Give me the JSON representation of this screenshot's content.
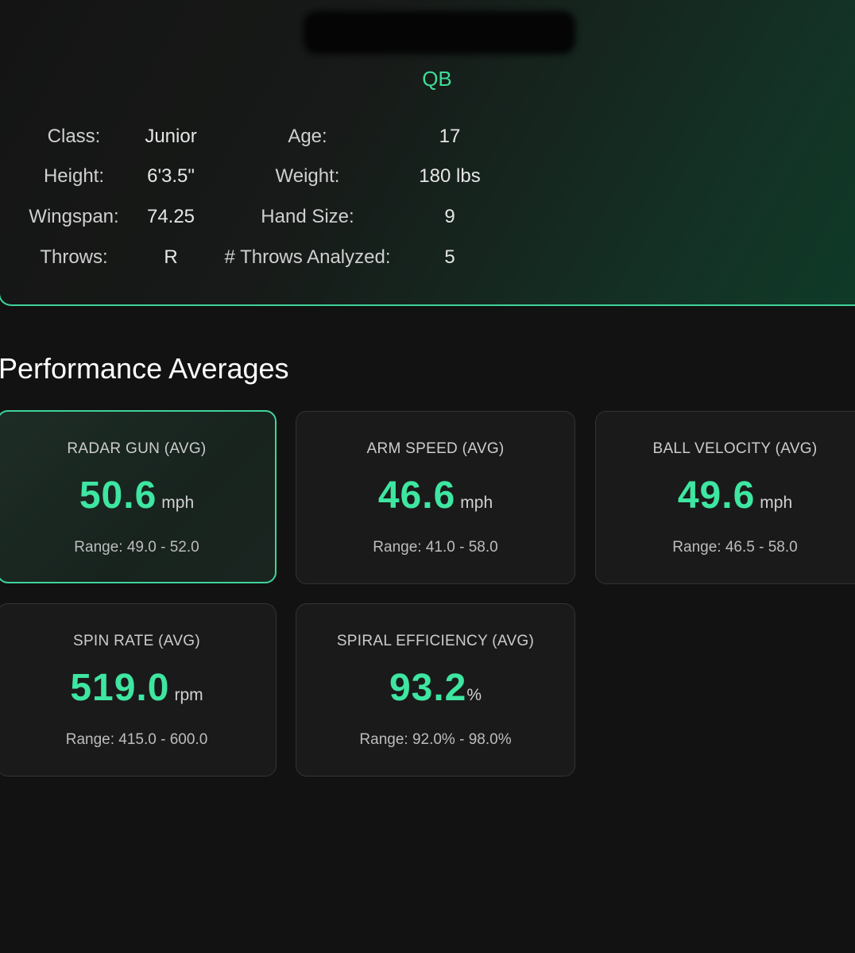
{
  "profile": {
    "position": "QB",
    "info": [
      {
        "label": "Class:",
        "value": "Junior"
      },
      {
        "label": "Age:",
        "value": "17"
      },
      {
        "label": "Height:",
        "value": "6'3.5\""
      },
      {
        "label": "Weight:",
        "value": "180 lbs"
      },
      {
        "label": "Wingspan:",
        "value": "74.25"
      },
      {
        "label": "Hand Size:",
        "value": "9"
      },
      {
        "label": "Throws:",
        "value": "R"
      },
      {
        "label": "# Throws Analyzed:",
        "value": "5"
      }
    ]
  },
  "performance": {
    "title": "Performance Averages",
    "metrics": [
      {
        "title": "RADAR GUN (AVG)",
        "value": "50.6",
        "unit": "mph",
        "range": "Range: 49.0 - 52.0",
        "highlighted": true
      },
      {
        "title": "ARM SPEED (AVG)",
        "value": "46.6",
        "unit": "mph",
        "range": "Range: 41.0 - 58.0",
        "highlighted": false
      },
      {
        "title": "BALL VELOCITY (AVG)",
        "value": "49.6",
        "unit": "mph",
        "range": "Range: 46.5 - 58.0",
        "highlighted": false
      },
      {
        "title": "SPIN RATE (AVG)",
        "value": "519.0",
        "unit": "rpm",
        "range": "Range: 415.0 - 600.0",
        "highlighted": false
      },
      {
        "title": "SPIRAL EFFICIENCY (AVG)",
        "value": "93.2",
        "unit": "%",
        "range": "Range: 92.0% - 98.0%",
        "highlighted": false
      }
    ]
  },
  "colors": {
    "accent": "#3ee6a1",
    "background": "#121212",
    "card": "#1a1a1a",
    "border_highlight": "#3fd39a"
  }
}
